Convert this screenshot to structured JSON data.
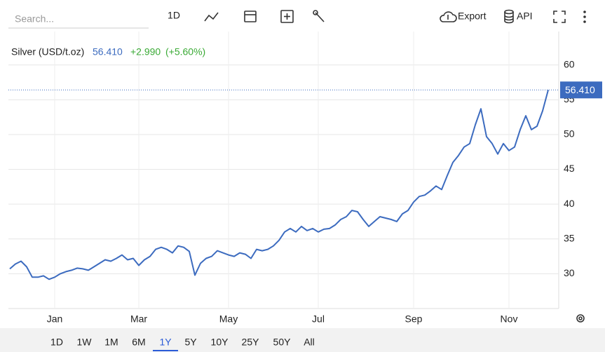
{
  "toolbar": {
    "search_placeholder": "Search...",
    "interval": "1D",
    "export": "Export",
    "api": "API"
  },
  "ranges": {
    "items": [
      "1D",
      "1W",
      "1M",
      "6M",
      "1Y",
      "5Y",
      "10Y",
      "25Y",
      "50Y",
      "All"
    ],
    "selected": 4
  },
  "chart_data": {
    "type": "line",
    "title": "Silver (USD/t.oz)",
    "last": "56.410",
    "change": "+2.990",
    "change_pct": "(+5.60%)",
    "categories": [
      null,
      null,
      null,
      null,
      null,
      null,
      null,
      null,
      "Jan",
      null,
      null,
      null,
      null,
      null,
      null,
      null,
      null,
      null,
      null,
      null,
      null,
      null,
      null,
      "Mar",
      null,
      null,
      null,
      null,
      null,
      null,
      null,
      null,
      null,
      null,
      null,
      null,
      null,
      null,
      null,
      "May",
      null,
      null,
      null,
      null,
      null,
      null,
      null,
      null,
      null,
      null,
      null,
      null,
      null,
      null,
      null,
      "Jul",
      null,
      null,
      null,
      null,
      null,
      null,
      null,
      null,
      null,
      null,
      null,
      null,
      null,
      null,
      null,
      null,
      "Sep",
      null,
      null,
      null,
      null,
      null,
      null,
      null,
      null,
      null,
      null,
      null,
      null,
      null,
      null,
      null,
      null,
      "Nov",
      null,
      null,
      null,
      null,
      null,
      null,
      null
    ],
    "series": [
      {
        "name": "Silver",
        "color": "#3c6bbf",
        "values": [
          30.7,
          31.4,
          31.8,
          31.0,
          29.5,
          29.5,
          29.7,
          29.2,
          29.5,
          30.0,
          30.3,
          30.5,
          30.8,
          30.7,
          30.5,
          31.0,
          31.5,
          32.0,
          31.8,
          32.2,
          32.7,
          32.0,
          32.2,
          31.2,
          32.0,
          32.5,
          33.5,
          33.8,
          33.5,
          33.0,
          34.0,
          33.8,
          33.2,
          29.8,
          31.5,
          32.2,
          32.5,
          33.3,
          33.0,
          32.7,
          32.5,
          33.0,
          32.8,
          32.2,
          33.5,
          33.3,
          33.5,
          34.0,
          34.8,
          36.0,
          36.5,
          36.0,
          36.8,
          36.2,
          36.5,
          36.0,
          36.4,
          36.5,
          37.0,
          37.8,
          38.2,
          39.1,
          38.9,
          37.8,
          36.8,
          37.5,
          38.2,
          38.0,
          37.8,
          37.5,
          38.6,
          39.1,
          40.3,
          41.1,
          41.3,
          41.9,
          42.6,
          42.1,
          44.1,
          46.0,
          47.0,
          48.2,
          48.7,
          51.4,
          53.7,
          49.7,
          48.7,
          47.2,
          48.7,
          47.7,
          48.2,
          50.7,
          52.7,
          50.7,
          51.2,
          53.4,
          56.41
        ]
      }
    ],
    "ylim": [
      25,
      64.8
    ],
    "yticks": [
      30,
      35,
      40,
      45,
      50,
      55,
      60
    ],
    "grid": true
  }
}
